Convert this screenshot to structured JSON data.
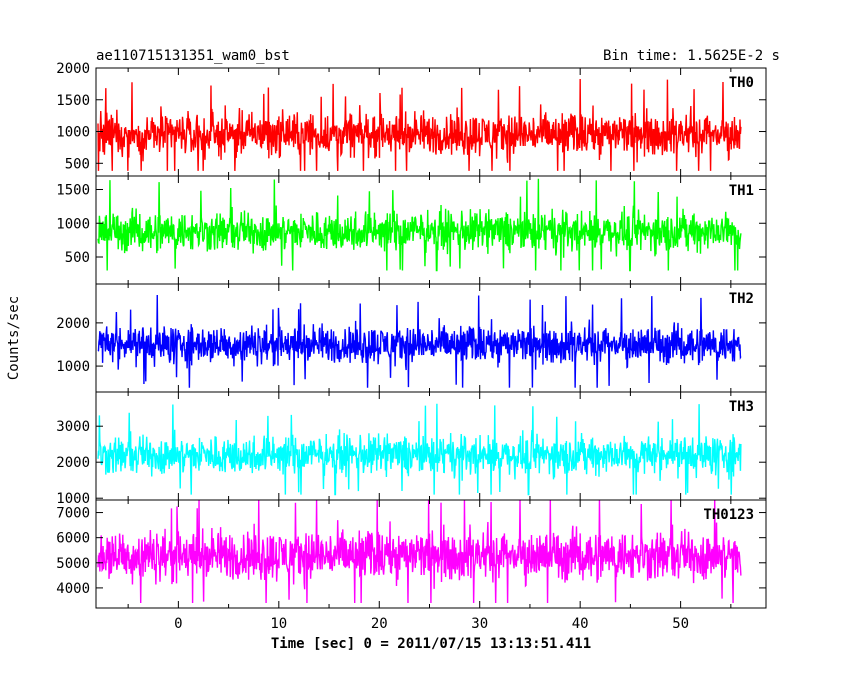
{
  "header": {
    "title": "ae110715131351_wam0_bst",
    "bin_time": "Bin time: 1.5625E-2 s"
  },
  "chart_data": {
    "type": "line",
    "layout": "stacked-panels",
    "xlabel": "Time [sec] 0 = 2011/07/15 13:13:51.411",
    "ylabel": "Counts/sec",
    "xlim": [
      -8.2,
      58.5
    ],
    "x_data_range": [
      -8,
      56
    ],
    "x_ticks": [
      0,
      10,
      20,
      30,
      40,
      50
    ],
    "bin_time_s": 0.015625,
    "panels": [
      {
        "name": "TH0",
        "color": "#ff0000",
        "ylim": [
          300,
          2000
        ],
        "y_ticks": [
          500,
          1000,
          1500,
          2000
        ],
        "mean": 960,
        "spread": 260,
        "min": 380,
        "max": 2000
      },
      {
        "name": "TH1",
        "color": "#00ff00",
        "ylim": [
          100,
          1700
        ],
        "y_ticks": [
          500,
          1000,
          1500
        ],
        "mean": 880,
        "spread": 230,
        "min": 300,
        "max": 1700
      },
      {
        "name": "TH2",
        "color": "#0000ff",
        "ylim": [
          400,
          2900
        ],
        "y_ticks": [
          1000,
          2000
        ],
        "mean": 1500,
        "spread": 340,
        "min": 500,
        "max": 2900
      },
      {
        "name": "TH3",
        "color": "#00ffff",
        "ylim": [
          950,
          3950
        ],
        "y_ticks": [
          1000,
          2000,
          3000
        ],
        "mean": 2200,
        "spread": 420,
        "min": 1100,
        "max": 3950
      },
      {
        "name": "TH0123",
        "color": "#ff00ff",
        "ylim": [
          3200,
          7500
        ],
        "y_ticks": [
          4000,
          5000,
          6000,
          7000
        ],
        "mean": 5300,
        "spread": 780,
        "min": 3400,
        "max": 7500
      }
    ]
  }
}
